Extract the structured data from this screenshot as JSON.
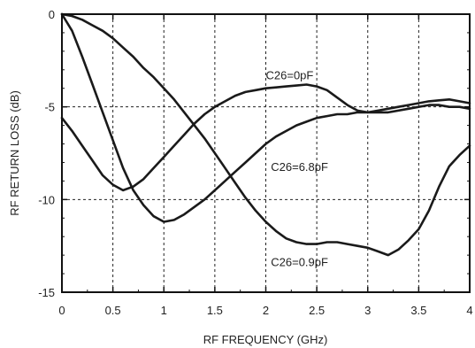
{
  "chart_data": {
    "type": "line",
    "title": "",
    "xlabel": "RF FREQUENCY (GHz)",
    "ylabel": "RF RETURN LOSS (dB)",
    "xlim": [
      0,
      4
    ],
    "ylim": [
      -15,
      0
    ],
    "xticks": [
      "0",
      "0.5",
      "1",
      "1.5",
      "2",
      "2.5",
      "3",
      "3.5",
      "4"
    ],
    "yticks": [
      "0",
      "-5",
      "-10",
      "-15"
    ],
    "grid": true,
    "series": [
      {
        "name": "C26=0pF",
        "x": [
          0,
          0.1,
          0.2,
          0.3,
          0.4,
          0.5,
          0.6,
          0.7,
          0.8,
          0.9,
          1.0,
          1.1,
          1.2,
          1.3,
          1.4,
          1.5,
          1.6,
          1.7,
          1.8,
          1.9,
          2.0,
          2.1,
          2.2,
          2.3,
          2.4,
          2.5,
          2.6,
          2.7,
          2.8,
          2.9,
          3.0,
          3.1,
          3.2,
          3.3,
          3.4,
          3.5,
          3.6,
          3.7,
          3.8,
          3.9,
          4.0
        ],
        "values": [
          -5.6,
          -6.3,
          -7.1,
          -7.9,
          -8.7,
          -9.2,
          -9.5,
          -9.3,
          -8.9,
          -8.3,
          -7.7,
          -7.1,
          -6.5,
          -5.9,
          -5.4,
          -5.0,
          -4.7,
          -4.4,
          -4.2,
          -4.1,
          -4.0,
          -3.95,
          -3.9,
          -3.85,
          -3.8,
          -3.9,
          -4.1,
          -4.5,
          -4.9,
          -5.2,
          -5.3,
          -5.2,
          -5.1,
          -5.0,
          -4.9,
          -4.8,
          -4.7,
          -4.65,
          -4.6,
          -4.7,
          -4.8
        ]
      },
      {
        "name": "C26=6.8pF",
        "x": [
          0,
          0.1,
          0.2,
          0.3,
          0.4,
          0.5,
          0.6,
          0.7,
          0.8,
          0.9,
          1.0,
          1.1,
          1.2,
          1.3,
          1.4,
          1.5,
          1.6,
          1.7,
          1.8,
          1.9,
          2.0,
          2.1,
          2.2,
          2.3,
          2.4,
          2.5,
          2.6,
          2.7,
          2.8,
          2.9,
          3.0,
          3.1,
          3.2,
          3.3,
          3.4,
          3.5,
          3.6,
          3.7,
          3.8,
          3.9,
          4.0
        ],
        "values": [
          0,
          -0.9,
          -2.3,
          -3.8,
          -5.3,
          -6.8,
          -8.3,
          -9.5,
          -10.3,
          -10.9,
          -11.2,
          -11.1,
          -10.8,
          -10.4,
          -10.0,
          -9.5,
          -9.0,
          -8.5,
          -8.0,
          -7.5,
          -7.0,
          -6.6,
          -6.3,
          -6.0,
          -5.8,
          -5.6,
          -5.5,
          -5.4,
          -5.4,
          -5.3,
          -5.3,
          -5.3,
          -5.3,
          -5.2,
          -5.1,
          -5.0,
          -4.9,
          -4.9,
          -5.0,
          -5.0,
          -5.1
        ]
      },
      {
        "name": "C26=0.9pF",
        "x": [
          0,
          0.1,
          0.2,
          0.3,
          0.4,
          0.5,
          0.6,
          0.7,
          0.8,
          0.9,
          1.0,
          1.1,
          1.2,
          1.3,
          1.4,
          1.5,
          1.6,
          1.7,
          1.8,
          1.9,
          2.0,
          2.1,
          2.2,
          2.3,
          2.4,
          2.5,
          2.6,
          2.7,
          2.8,
          2.9,
          3.0,
          3.1,
          3.2,
          3.3,
          3.4,
          3.5,
          3.6,
          3.7,
          3.8,
          3.9,
          4.0
        ],
        "values": [
          0,
          -0.1,
          -0.3,
          -0.6,
          -0.9,
          -1.3,
          -1.8,
          -2.3,
          -2.9,
          -3.4,
          -4.0,
          -4.6,
          -5.3,
          -6.0,
          -6.7,
          -7.5,
          -8.3,
          -9.1,
          -9.9,
          -10.6,
          -11.2,
          -11.7,
          -12.1,
          -12.3,
          -12.4,
          -12.4,
          -12.3,
          -12.3,
          -12.4,
          -12.5,
          -12.6,
          -12.8,
          -13.0,
          -12.7,
          -12.2,
          -11.6,
          -10.6,
          -9.3,
          -8.2,
          -7.6,
          -7.1
        ]
      }
    ],
    "annotations": [
      {
        "text": "C26=0pF",
        "x": 2.0,
        "y": -3.5
      },
      {
        "text": "C26=6.8pF",
        "x": 2.05,
        "y": -8.45
      },
      {
        "text": "C26=0.9pF",
        "x": 2.05,
        "y": -13.6
      }
    ]
  }
}
